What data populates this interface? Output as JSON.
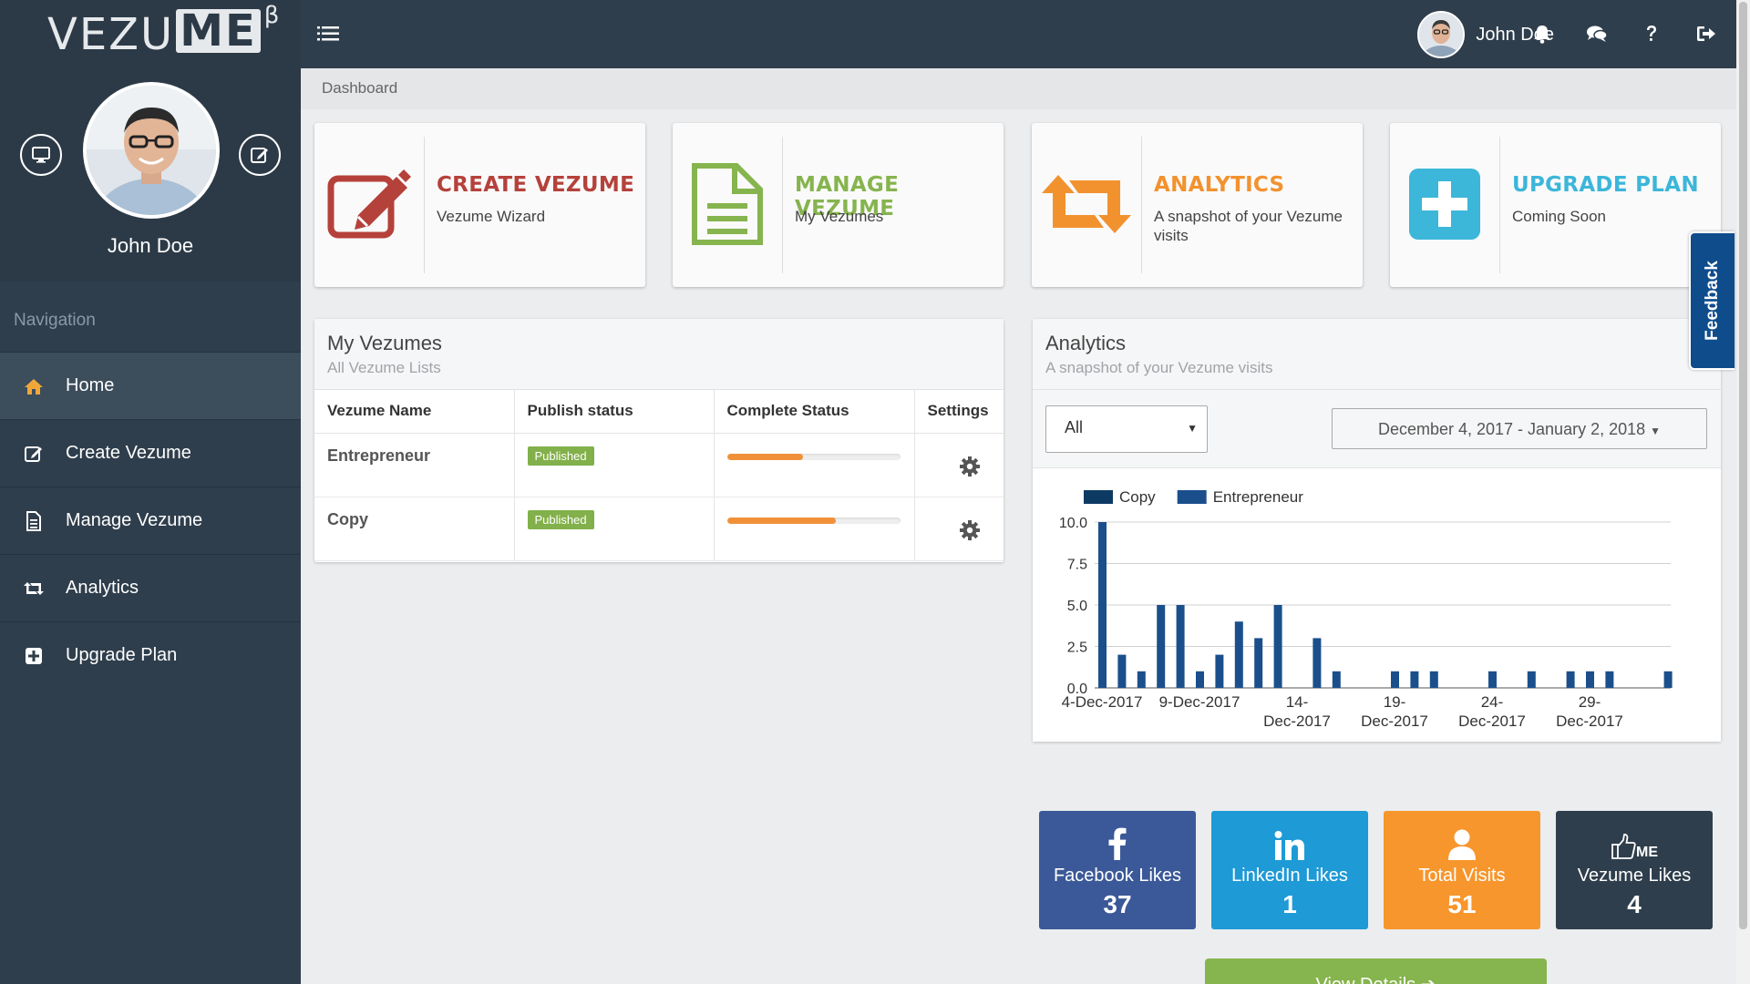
{
  "app": {
    "logo_main": "VEZU",
    "logo_me": "ME",
    "logo_beta": "β"
  },
  "user": {
    "name": "John Doe"
  },
  "sidebar": {
    "nav_header": "Navigation",
    "items": [
      {
        "label": "Home",
        "icon": "home-icon",
        "active": true
      },
      {
        "label": "Create Vezume",
        "icon": "edit-icon"
      },
      {
        "label": "Manage Vezume",
        "icon": "document-icon"
      },
      {
        "label": "Analytics",
        "icon": "retweet-icon"
      },
      {
        "label": "Upgrade Plan",
        "icon": "plus-square-icon"
      }
    ]
  },
  "topbar": {
    "icons": [
      "bell-icon",
      "chat-icon",
      "help-icon",
      "logout-icon"
    ]
  },
  "breadcrumb": "Dashboard",
  "cards": [
    {
      "title": "CREATE VEZUME",
      "sub": "Vezume Wizard",
      "color": "#b5413b",
      "icon": "edit-icon"
    },
    {
      "title": "MANAGE VEZUME",
      "sub": "My Vezumes",
      "color": "#86b44e",
      "icon": "document-icon"
    },
    {
      "title": "ANALYTICS",
      "sub": "A snapshot of your Vezume visits",
      "color": "#f2922f",
      "icon": "retweet-icon"
    },
    {
      "title": "UPGRADE PLAN",
      "sub": "Coming Soon",
      "color": "#3cb6d9",
      "icon": "plus-square-icon"
    }
  ],
  "my_vezumes": {
    "title": "My Vezumes",
    "subtitle": "All Vezume Lists",
    "columns": [
      "Vezume Name",
      "Publish status",
      "Complete Status",
      "Settings"
    ],
    "rows": [
      {
        "name": "Entrepreneur",
        "status": "Published",
        "complete": 0.44
      },
      {
        "name": "Copy",
        "status": "Published",
        "complete": 0.63
      }
    ]
  },
  "analytics": {
    "title": "Analytics",
    "subtitle": "A snapshot of your Vezume visits",
    "filter_value": "All",
    "date_range": "December 4, 2017 - January 2, 2018"
  },
  "chart_data": {
    "type": "bar",
    "title": "",
    "xlabel": "",
    "ylabel": "",
    "ylim": [
      0,
      10
    ],
    "yticks": [
      "0.0",
      "2.5",
      "5.0",
      "7.5",
      "10.0"
    ],
    "xtick_labels": [
      {
        "line1": "4-Dec-2017",
        "line2": ""
      },
      {
        "line1": "9-Dec-2017",
        "line2": ""
      },
      {
        "line1": "14-",
        "line2": "Dec-2017"
      },
      {
        "line1": "19-",
        "line2": "Dec-2017"
      },
      {
        "line1": "24-",
        "line2": "Dec-2017"
      },
      {
        "line1": "29-",
        "line2": "Dec-2017"
      }
    ],
    "legend": "top-left",
    "grid": true,
    "series": [
      {
        "name": "Copy",
        "color": "#0d3a63"
      },
      {
        "name": "Entrepreneur",
        "color": "#1b4f8c"
      }
    ],
    "days": [
      "4-Dec",
      "5-Dec",
      "6-Dec",
      "7-Dec",
      "8-Dec",
      "9-Dec",
      "10-Dec",
      "11-Dec",
      "12-Dec",
      "13-Dec",
      "14-Dec",
      "15-Dec",
      "16-Dec",
      "17-Dec",
      "18-Dec",
      "19-Dec",
      "20-Dec",
      "21-Dec",
      "22-Dec",
      "23-Dec",
      "24-Dec",
      "25-Dec",
      "26-Dec",
      "27-Dec",
      "28-Dec",
      "29-Dec",
      "30-Dec",
      "31-Dec",
      "1-Jan",
      "2-Jan"
    ],
    "values": [
      10,
      2,
      1,
      5,
      5,
      1,
      2,
      4,
      3,
      5,
      0,
      3,
      1,
      0,
      0,
      1,
      1,
      1,
      0,
      0,
      1,
      0,
      1,
      0,
      1,
      1,
      1,
      0,
      0,
      1
    ]
  },
  "stats": [
    {
      "label": "Facebook Likes",
      "value": "37",
      "color": "#3b5998",
      "icon": "facebook-icon"
    },
    {
      "label": "LinkedIn Likes",
      "value": "1",
      "color": "#1e9ad6",
      "icon": "linkedin-icon"
    },
    {
      "label": "Total Visits",
      "value": "51",
      "color": "#f7962c",
      "icon": "user-icon"
    },
    {
      "label": "Vezume Likes",
      "value": "4",
      "color": "#2f3e4c",
      "icon": "thumbs-up-me-icon"
    }
  ],
  "view_details": "View Details",
  "feedback": "Feedback"
}
